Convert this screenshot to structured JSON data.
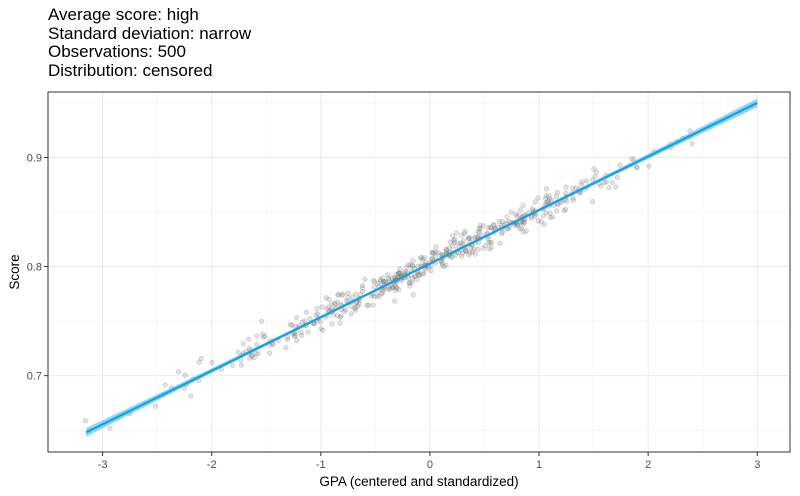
{
  "title_lines": [
    "Average score: high",
    "Standard deviation: narrow",
    "Observations: 500",
    "Distribution: censored"
  ],
  "chart_data": {
    "type": "scatter",
    "xlabel": "GPA (centered and standardized)",
    "ylabel": "Score",
    "xlim": [
      -3.5,
      3.3
    ],
    "ylim": [
      0.63,
      0.96
    ],
    "x_ticks": [
      -3,
      -2,
      -1,
      0,
      1,
      2,
      3
    ],
    "x_tick_labels": [
      "-3",
      "-2",
      "-1",
      "0",
      "1",
      "2",
      "3"
    ],
    "y_ticks": [
      0.7,
      0.8,
      0.9
    ],
    "y_tick_labels": [
      "0.7",
      "0.8",
      "0.9"
    ],
    "grid": true,
    "n_points": 500,
    "fit": {
      "type": "linear",
      "x": [
        -3.15,
        3.0
      ],
      "y": [
        0.648,
        0.95
      ],
      "ci_half_width_edge": 0.004,
      "ci_half_width_center": 0.001,
      "line_color": "#1a9fdc",
      "band_color": "#5bc8f0"
    },
    "points_color": "#808080"
  }
}
